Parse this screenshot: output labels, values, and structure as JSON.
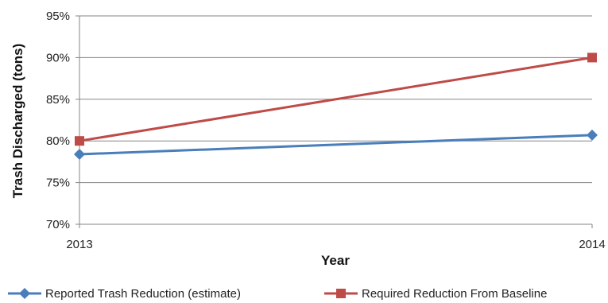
{
  "chart_data": {
    "type": "line",
    "title": "",
    "xlabel": "Year",
    "ylabel": "Trash Discharged (tons)",
    "categories": [
      "2013",
      "2014"
    ],
    "ylim": [
      70,
      95
    ],
    "yticks": [
      "70%",
      "75%",
      "80%",
      "85%",
      "90%",
      "95%"
    ],
    "ytick_values": [
      70,
      75,
      80,
      85,
      90,
      95
    ],
    "grid": true,
    "legend_position": "bottom",
    "series": [
      {
        "name": "Reported Trash Reduction (estimate)",
        "values": [
          78.4,
          80.7
        ],
        "color": "#4a7ebb",
        "marker": "diamond"
      },
      {
        "name": "Required Reduction From Baseline",
        "values": [
          80.0,
          90.0
        ],
        "color": "#be4b48",
        "marker": "square"
      }
    ]
  }
}
